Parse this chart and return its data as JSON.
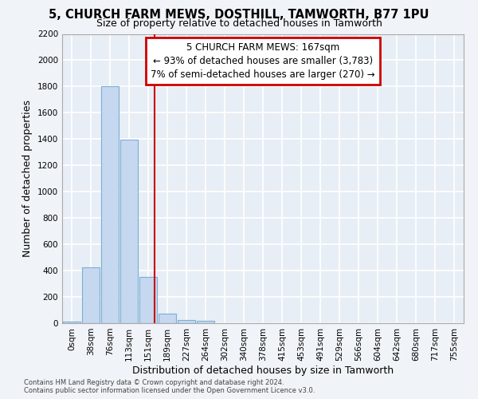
{
  "title_line1": "5, CHURCH FARM MEWS, DOSTHILL, TAMWORTH, B77 1PU",
  "title_line2": "Size of property relative to detached houses in Tamworth",
  "xlabel": "Distribution of detached houses by size in Tamworth",
  "ylabel": "Number of detached properties",
  "bar_labels": [
    "0sqm",
    "38sqm",
    "76sqm",
    "113sqm",
    "151sqm",
    "189sqm",
    "227sqm",
    "264sqm",
    "302sqm",
    "340sqm",
    "378sqm",
    "415sqm",
    "453sqm",
    "491sqm",
    "529sqm",
    "566sqm",
    "604sqm",
    "642sqm",
    "680sqm",
    "717sqm",
    "755sqm"
  ],
  "bar_heights": [
    15,
    425,
    1800,
    1395,
    350,
    75,
    25,
    20,
    0,
    0,
    0,
    0,
    0,
    0,
    0,
    0,
    0,
    0,
    0,
    0,
    0
  ],
  "bar_color": "#c5d8ef",
  "bar_edge_color": "#7bafd4",
  "property_line_x": 4.33,
  "annotation_line1": "5 CHURCH FARM MEWS: 167sqm",
  "annotation_line2": "← 93% of detached houses are smaller (3,783)",
  "annotation_line3": "7% of semi-detached houses are larger (270) →",
  "annotation_box_color": "#ffffff",
  "annotation_box_edge_color": "#cc0000",
  "vline_color": "#cc0000",
  "ylim": [
    0,
    2200
  ],
  "yticks": [
    0,
    200,
    400,
    600,
    800,
    1000,
    1200,
    1400,
    1600,
    1800,
    2000,
    2200
  ],
  "footer_line1": "Contains HM Land Registry data © Crown copyright and database right 2024.",
  "footer_line2": "Contains public sector information licensed under the Open Government Licence v3.0.",
  "bg_color": "#f0f4f8",
  "plot_bg_color": "#e8eef5",
  "grid_color": "#ffffff",
  "title_fontsize": 10.5,
  "subtitle_fontsize": 9,
  "label_fontsize": 9,
  "tick_fontsize": 7.5,
  "annotation_fontsize": 8.5,
  "footer_fontsize": 6
}
